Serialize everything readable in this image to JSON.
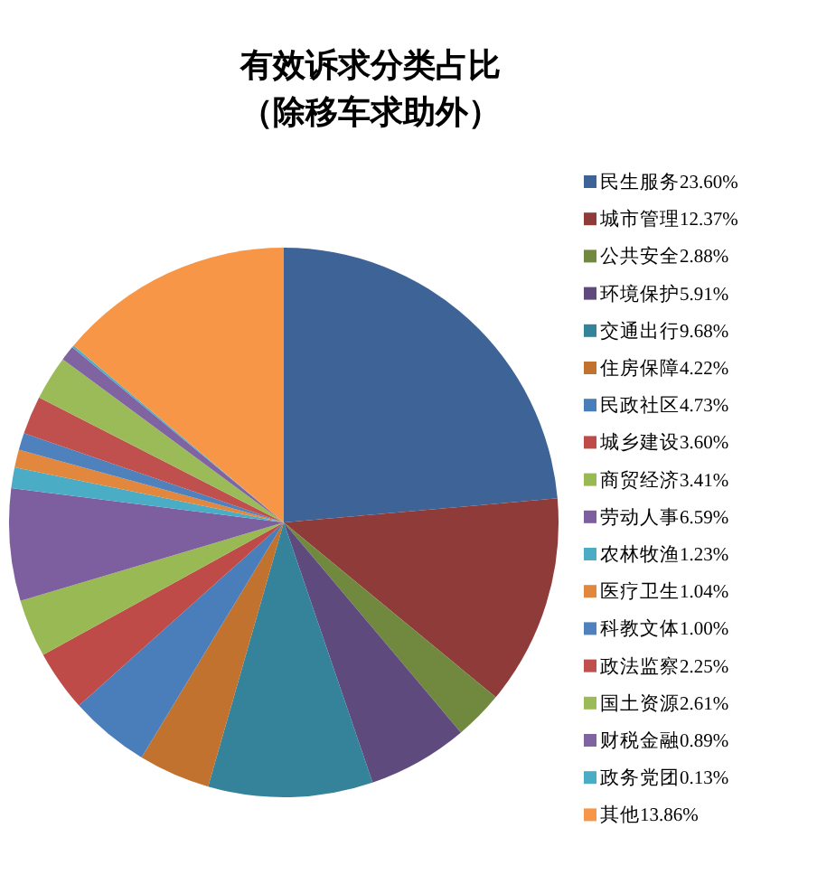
{
  "chart_data": {
    "type": "pie",
    "title": "有效诉求分类占比",
    "subtitle": "（除移车求助外）",
    "legend": "right",
    "categories": [
      "民生服务23.60%",
      "城市管理12.37%",
      "公共安全2.88%",
      "环境保护5.91%",
      "交通出行9.68%",
      "住房保障4.22%",
      "民政社区4.73%",
      "城乡建设3.60%",
      "商贸经济3.41%",
      "劳动人事6.59%",
      "农林牧渔1.23%",
      "医疗卫生1.04%",
      "科教文体1.00%",
      "政法监察2.25%",
      "国土资源2.61%",
      "财税金融0.89%",
      "政务党团0.13%",
      "其他13.86%"
    ],
    "values": [
      23.6,
      12.37,
      2.88,
      5.91,
      9.68,
      4.22,
      4.73,
      3.6,
      3.41,
      6.59,
      1.23,
      1.04,
      1.0,
      2.25,
      2.61,
      0.89,
      0.13,
      13.86
    ],
    "colors": [
      "#3e6497",
      "#8e3b39",
      "#71893f",
      "#5e4a7d",
      "#35839b",
      "#c0722e",
      "#4a7ebb",
      "#be4b48",
      "#98b954",
      "#7d5fa0",
      "#4bacc6",
      "#e2873e",
      "#4f81bd",
      "#c0504d",
      "#9bbb59",
      "#8064a2",
      "#4bacc6",
      "#f79646"
    ]
  }
}
